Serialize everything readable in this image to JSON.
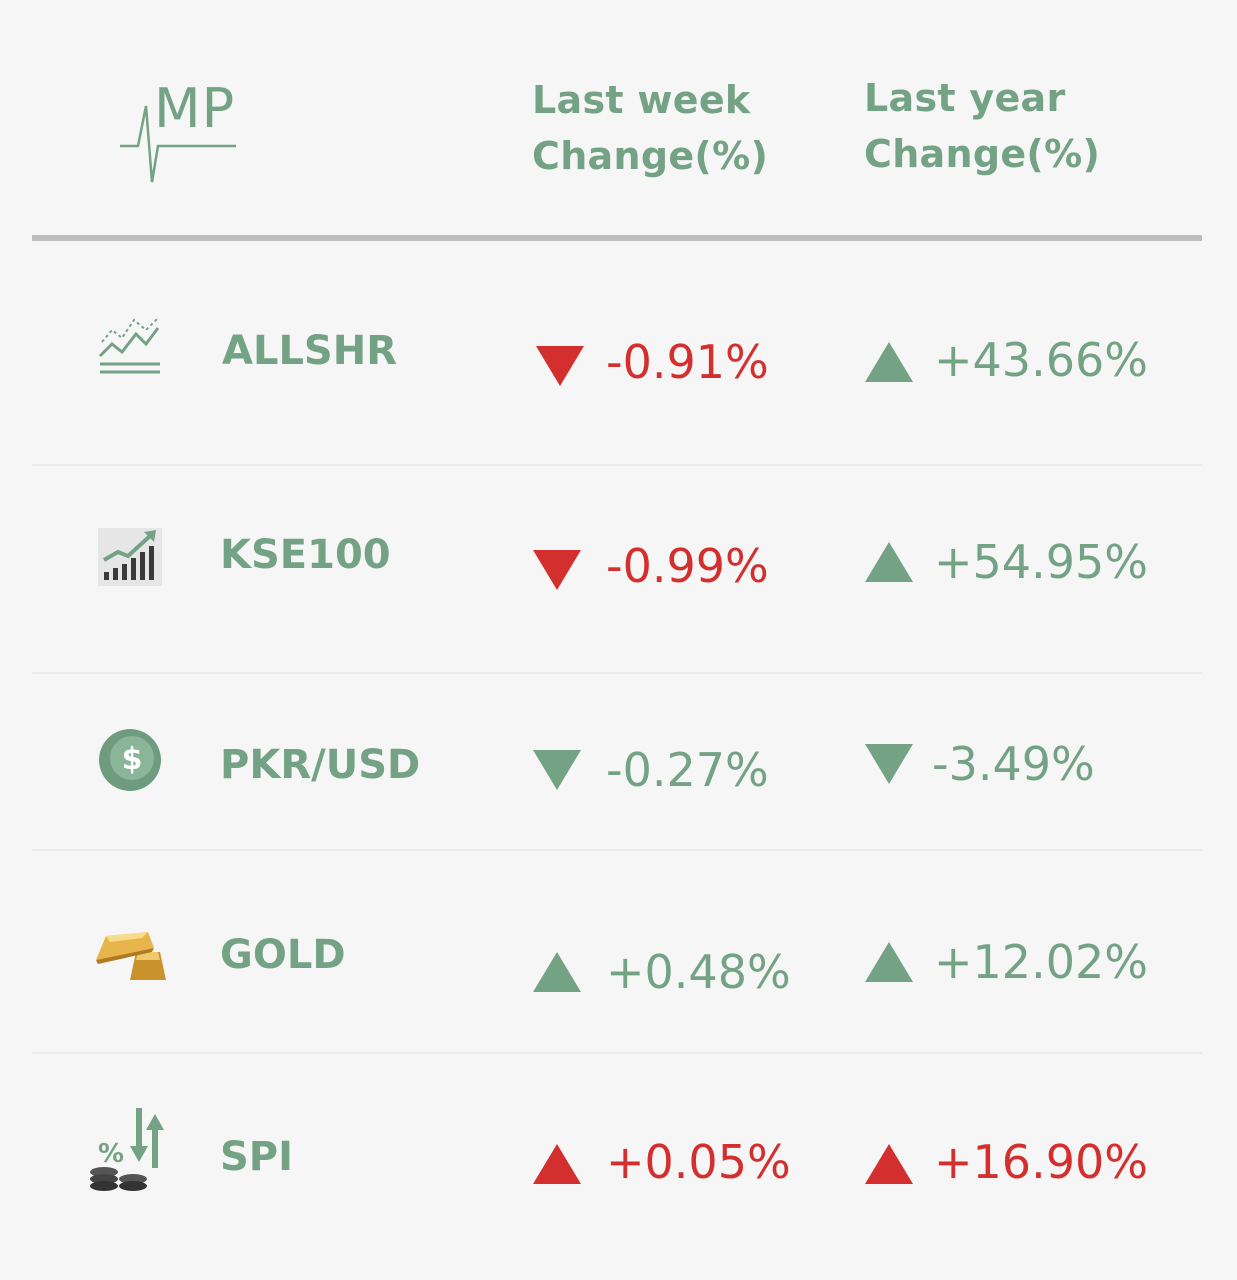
{
  "colors": {
    "green": "#74a285",
    "red": "#d32f2f",
    "gray": "#bdbdbd"
  },
  "header": {
    "logo_text": "MP",
    "col_week": [
      "Last week",
      "Change(%)"
    ],
    "col_year": [
      "Last year",
      "Change(%)"
    ]
  },
  "rows": [
    {
      "name": "ALLSHR",
      "icon": "line-chart-icon",
      "week": {
        "value": "-0.91%",
        "dir": "down",
        "color": "#d32f2f"
      },
      "year": {
        "value": "+43.66%",
        "dir": "up",
        "color": "#74a285"
      }
    },
    {
      "name": "KSE100",
      "icon": "bar-chart-up-icon",
      "week": {
        "value": "-0.99%",
        "dir": "down",
        "color": "#d32f2f"
      },
      "year": {
        "value": "+54.95%",
        "dir": "up",
        "color": "#74a285"
      }
    },
    {
      "name": "PKR/USD",
      "icon": "dollar-coin-icon",
      "week": {
        "value": "-0.27%",
        "dir": "down",
        "color": "#74a285"
      },
      "year": {
        "value": "-3.49%",
        "dir": "down",
        "color": "#74a285"
      }
    },
    {
      "name": "GOLD",
      "icon": "gold-bars-icon",
      "week": {
        "value": "+0.48%",
        "dir": "up",
        "color": "#74a285"
      },
      "year": {
        "value": "+12.02%",
        "dir": "up",
        "color": "#74a285"
      }
    },
    {
      "name": "SPI",
      "icon": "percent-coins-icon",
      "week": {
        "value": "+0.05%",
        "dir": "up",
        "color": "#d32f2f"
      },
      "year": {
        "value": "+16.90%",
        "dir": "up",
        "color": "#d32f2f"
      }
    }
  ]
}
